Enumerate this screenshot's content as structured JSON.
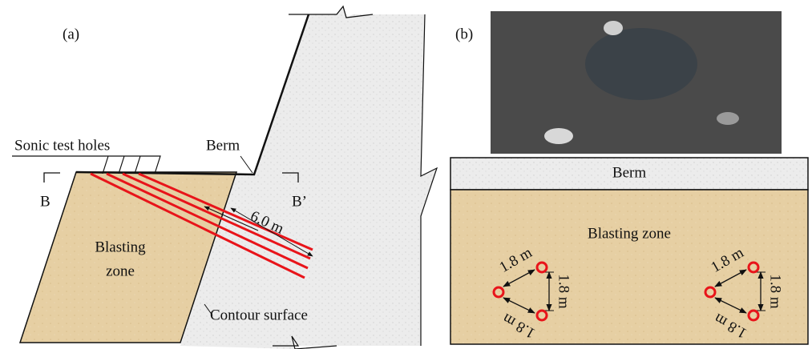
{
  "panel_a": {
    "label": "(a)",
    "sonic_test_holes": "Sonic test holes",
    "berm": "Berm",
    "section_left": "B",
    "section_right": "B’",
    "spacing": "6.0 m",
    "blasting_zone": [
      "Blasting",
      "zone"
    ],
    "contour_surface": "Contour surface"
  },
  "panel_b": {
    "label": "(b)",
    "berm": "Berm",
    "blasting_zone": "Blasting zone",
    "hole_groups": [
      {
        "spacings": [
          "1.8 m",
          "1.8 m",
          "1.8 m"
        ]
      },
      {
        "spacings": [
          "1.8 m",
          "1.8 m",
          "1.8 m"
        ]
      }
    ]
  }
}
